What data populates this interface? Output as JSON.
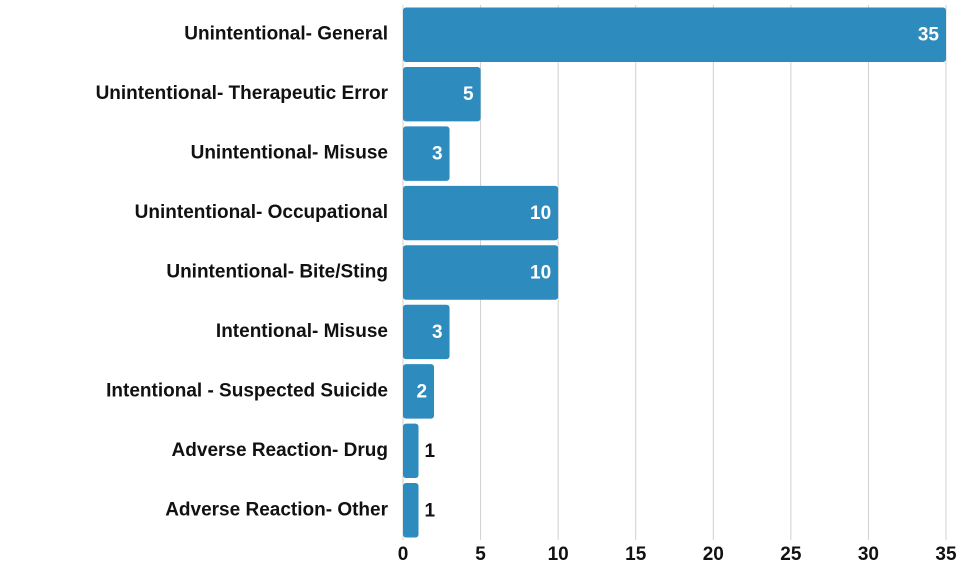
{
  "chart_data": {
    "type": "bar",
    "orientation": "horizontal",
    "categories": [
      "Unintentional- General",
      "Unintentional- Therapeutic Error",
      "Unintentional- Misuse",
      "Unintentional- Occupational",
      "Unintentional- Bite/Sting",
      "Intentional- Misuse",
      "Intentional - Suspected Suicide",
      "Adverse Reaction- Drug",
      "Adverse Reaction- Other"
    ],
    "values": [
      35,
      5,
      3,
      10,
      10,
      3,
      2,
      1,
      1
    ],
    "color": "#2e8bbd",
    "xlim": [
      0,
      35
    ],
    "xticks": [
      0,
      5,
      10,
      15,
      20,
      25,
      30,
      35
    ],
    "grid": true
  }
}
